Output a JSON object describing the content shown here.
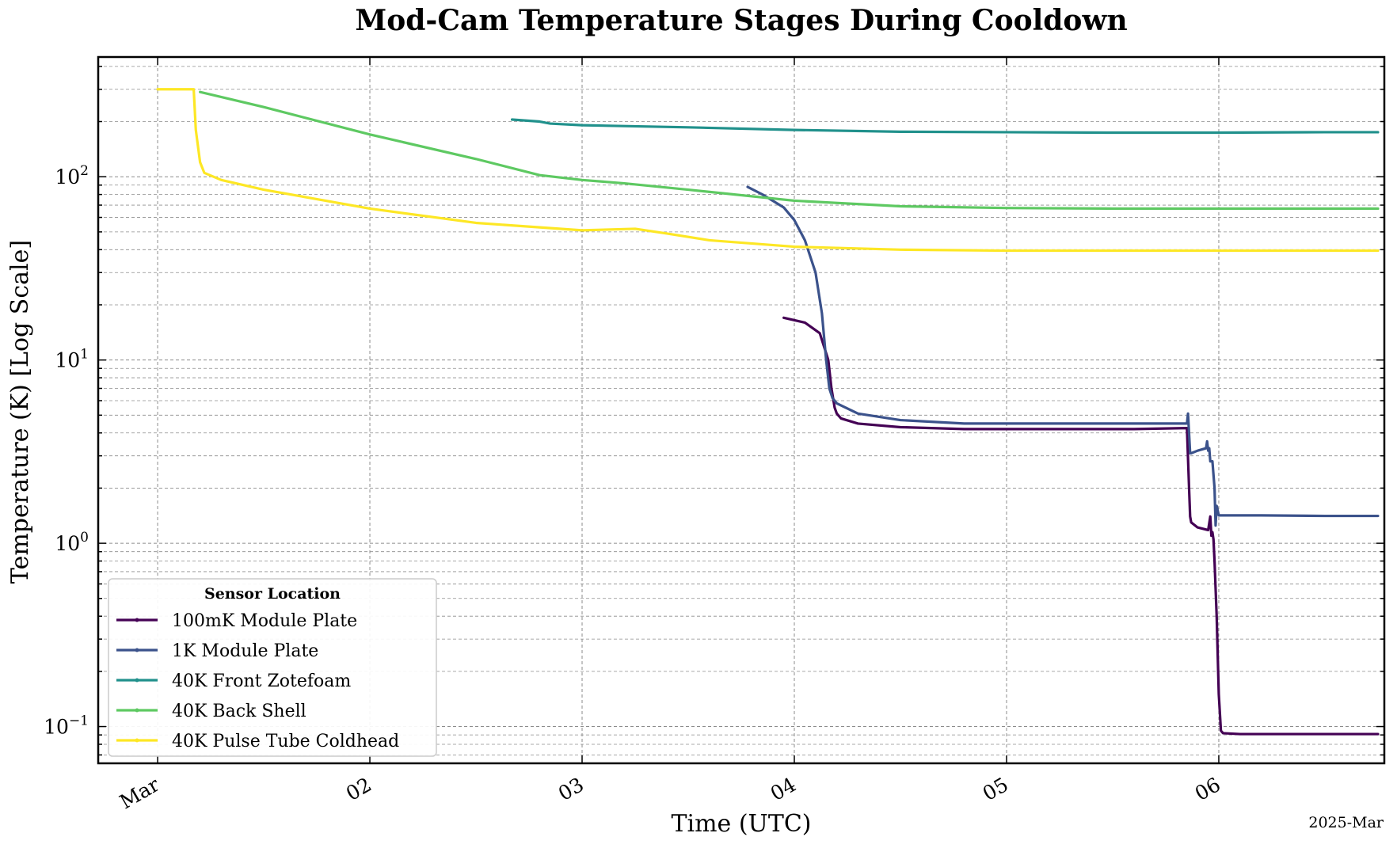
{
  "chart_data": {
    "type": "line",
    "title": "Mod-Cam Temperature Stages During Cooldown",
    "xlabel": "Time (UTC)",
    "ylabel": "Temperature (K) [Log Scale]",
    "x_offset_label": "2025-Mar",
    "yscale": "log",
    "xlim": [
      -0.28,
      5.78
    ],
    "ylim": [
      0.063,
      450
    ],
    "x_ticks": [
      {
        "value": 0,
        "label": "Mar"
      },
      {
        "value": 1,
        "label": "02"
      },
      {
        "value": 2,
        "label": "03"
      },
      {
        "value": 3,
        "label": "04"
      },
      {
        "value": 4,
        "label": "05"
      },
      {
        "value": 5,
        "label": "06"
      }
    ],
    "y_ticks": [
      {
        "value": 0.1,
        "base": "10",
        "exp": "−1"
      },
      {
        "value": 1,
        "base": "10",
        "exp": "0"
      },
      {
        "value": 10,
        "base": "10",
        "exp": "1"
      },
      {
        "value": 100,
        "base": "10",
        "exp": "2"
      }
    ],
    "grid": true,
    "legend": {
      "title": "Sensor Location",
      "position": "lower-left"
    },
    "x_units": "days since 2025-03-01 00:00 UTC",
    "series": [
      {
        "name": "100mK Module Plate",
        "color": "#440154",
        "x": [
          2.95,
          3.05,
          3.12,
          3.16,
          3.175,
          3.19,
          3.2,
          3.22,
          3.3,
          3.5,
          3.8,
          4.2,
          4.6,
          4.85,
          4.86,
          4.865,
          4.87,
          4.9,
          4.95,
          4.96,
          4.965,
          4.97,
          4.975,
          4.98,
          4.99,
          5.0,
          5.01,
          5.02,
          5.1,
          5.5,
          5.75
        ],
        "y": [
          17,
          16,
          14,
          10,
          7,
          5.5,
          5.1,
          4.8,
          4.5,
          4.3,
          4.2,
          4.2,
          4.2,
          4.25,
          2.0,
          1.4,
          1.3,
          1.22,
          1.18,
          1.4,
          1.1,
          1.15,
          1.05,
          0.8,
          0.4,
          0.15,
          0.095,
          0.092,
          0.091,
          0.091,
          0.091
        ]
      },
      {
        "name": "1K Module Plate",
        "color": "#3b528b",
        "x": [
          2.78,
          2.85,
          2.95,
          3.0,
          3.05,
          3.1,
          3.13,
          3.15,
          3.165,
          3.18,
          3.2,
          3.3,
          3.5,
          3.8,
          4.2,
          4.6,
          4.85,
          4.855,
          4.865,
          4.87,
          4.9,
          4.94,
          4.945,
          4.95,
          4.955,
          4.96,
          4.97,
          4.98,
          4.985,
          4.99,
          5.0,
          5.2,
          5.5,
          5.75
        ],
        "y": [
          88,
          80,
          68,
          58,
          45,
          30,
          18,
          10,
          7,
          6.2,
          5.8,
          5.1,
          4.7,
          4.5,
          4.5,
          4.5,
          4.5,
          5.1,
          3.1,
          3.1,
          3.2,
          3.3,
          3.6,
          3.2,
          3.3,
          2.8,
          2.8,
          2.0,
          1.25,
          1.6,
          1.42,
          1.42,
          1.41,
          1.41
        ]
      },
      {
        "name": "40K Front Zotefoam",
        "color": "#21918c",
        "x": [
          1.67,
          1.8,
          1.85,
          2.0,
          2.5,
          3.0,
          3.5,
          4.0,
          4.5,
          5.0,
          5.5,
          5.75
        ],
        "y": [
          205,
          200,
          195,
          191,
          186,
          180,
          176,
          175,
          174,
          174,
          175,
          175
        ]
      },
      {
        "name": "40K Back Shell",
        "color": "#5ec962",
        "x": [
          0.2,
          0.5,
          1.0,
          1.5,
          1.8,
          2.0,
          2.2,
          2.5,
          3.0,
          3.5,
          4.0,
          4.5,
          5.0,
          5.5,
          5.75
        ],
        "y": [
          290,
          240,
          170,
          125,
          102,
          96,
          92,
          85,
          74,
          69,
          67.5,
          67,
          67,
          67,
          67
        ]
      },
      {
        "name": "40K Pulse Tube Coldhead",
        "color": "#fde725",
        "x": [
          0.0,
          0.17,
          0.18,
          0.2,
          0.22,
          0.3,
          0.5,
          1.0,
          1.5,
          2.0,
          2.25,
          2.4,
          2.6,
          3.0,
          3.5,
          4.0,
          5.0,
          5.75
        ],
        "y": [
          300,
          300,
          180,
          120,
          105,
          96,
          85,
          67,
          56,
          51,
          52,
          49,
          45,
          41.5,
          40,
          39.5,
          39.5,
          39.5
        ]
      }
    ]
  }
}
